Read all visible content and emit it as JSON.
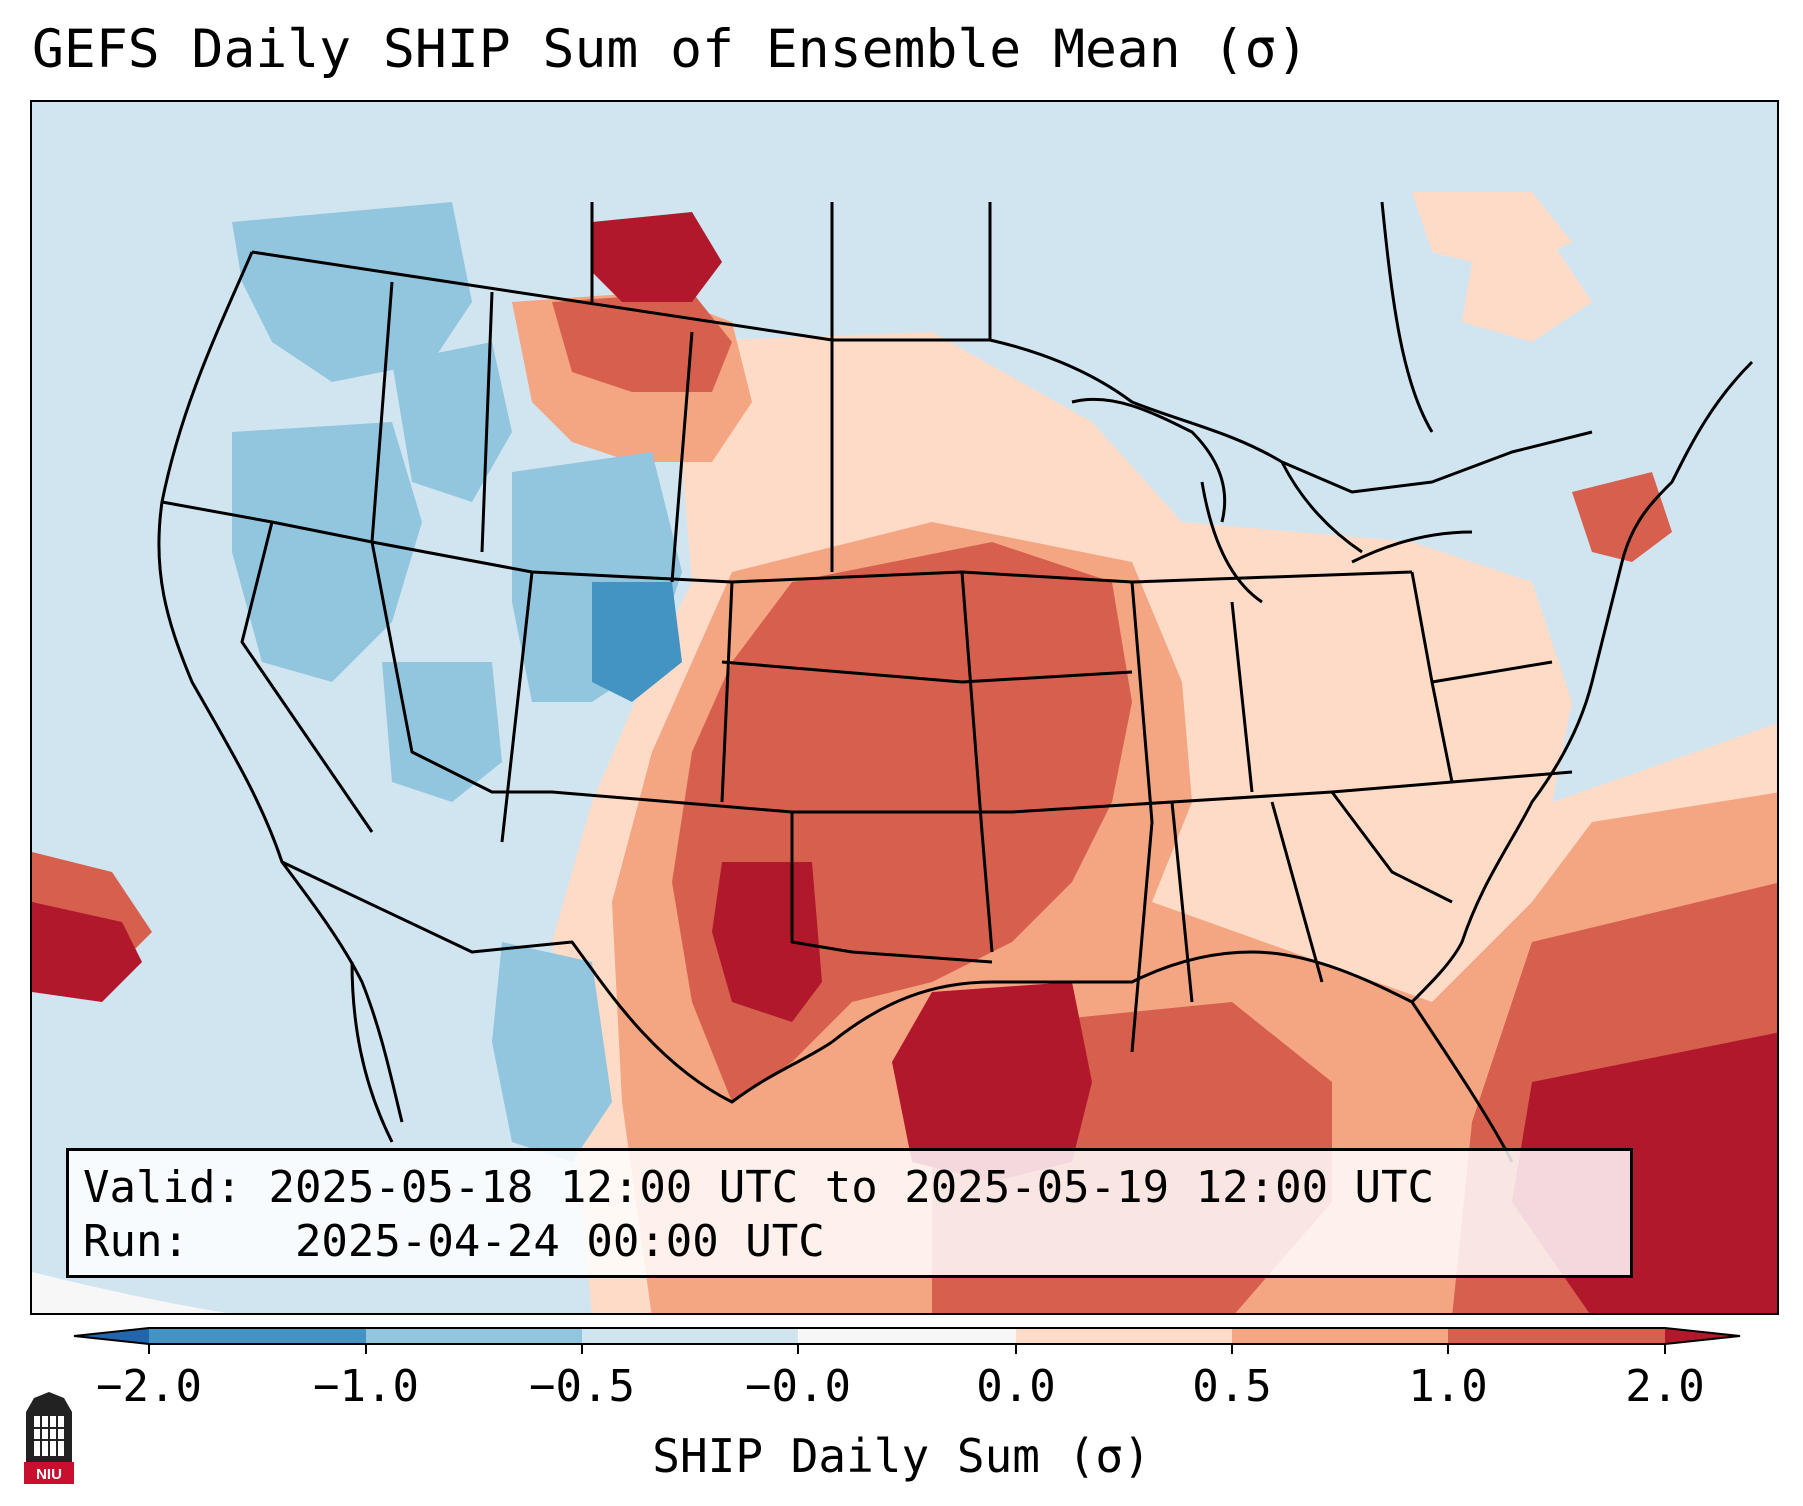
{
  "title": "GEFS Daily SHIP Sum of Ensemble Mean (σ)",
  "map": {
    "type": "gridded anomaly map",
    "region": "Contiguous United States",
    "colormap_colors": [
      "#2166ac",
      "#4393c3",
      "#92c5de",
      "#d1e5f0",
      "#f7f7f7",
      "#fddbc7",
      "#f4a582",
      "#d6604d",
      "#b2182b"
    ]
  },
  "info": {
    "valid_label": "Valid:",
    "valid_value": "2025-05-18 12:00 UTC to 2025-05-19 12:00 UTC",
    "run_label": "Run:",
    "run_value": "2025-04-24 00:00 UTC"
  },
  "colorbar": {
    "ticks": [
      "−2.0",
      "−1.0",
      "−0.5",
      "−0.0",
      "0.0",
      "0.5",
      "1.0",
      "2.0"
    ],
    "bins": [
      {
        "from": -2.0,
        "to": -1.0,
        "color": "#4393c3"
      },
      {
        "from": -1.0,
        "to": -0.5,
        "color": "#92c5de"
      },
      {
        "from": -0.5,
        "to": -0.0,
        "color": "#d1e5f0"
      },
      {
        "from": -0.0,
        "to": 0.0,
        "color": "#f7f7f7"
      },
      {
        "from": 0.0,
        "to": 0.5,
        "color": "#fddbc7"
      },
      {
        "from": 0.5,
        "to": 1.0,
        "color": "#f4a582"
      },
      {
        "from": 1.0,
        "to": 2.0,
        "color": "#d6604d"
      }
    ],
    "under_color": "#2166ac",
    "over_color": "#b2182b",
    "label": "SHIP Daily Sum (σ)"
  },
  "logo": {
    "text": "NIU"
  }
}
